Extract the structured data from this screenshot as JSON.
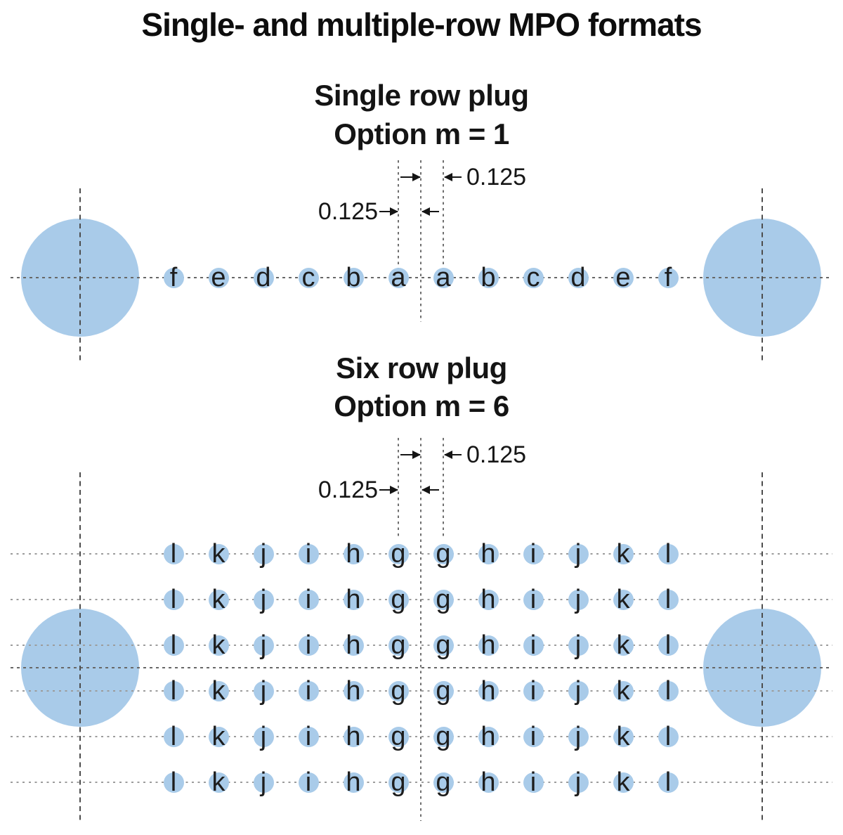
{
  "title": "Single- and multiple-row MPO formats",
  "single_section": {
    "heading": "Single row plug",
    "option": "Option m = 1",
    "dim_top": "0.125",
    "dim_bottom": "0.125",
    "letters": [
      "f",
      "e",
      "d",
      "c",
      "b",
      "a",
      "a",
      "b",
      "c",
      "d",
      "e",
      "f"
    ]
  },
  "six_section": {
    "heading": "Six row plug",
    "option": "Option m = 6",
    "dim_top": "0.125",
    "dim_bottom": "0.125",
    "letters": [
      "l",
      "k",
      "j",
      "i",
      "h",
      "g",
      "g",
      "h",
      "i",
      "j",
      "k",
      "l"
    ],
    "row_count": 6
  },
  "colors": {
    "fiber_fill": "#a9cbe9",
    "guide_pin_fill": "#a9cbe9",
    "letter_color": "#1d1d1d",
    "text_color": "#111111",
    "dotted_line_light": "#9c9c9c",
    "dotted_line_dark": "#686868",
    "dashed_line": "#4d4d4d"
  }
}
